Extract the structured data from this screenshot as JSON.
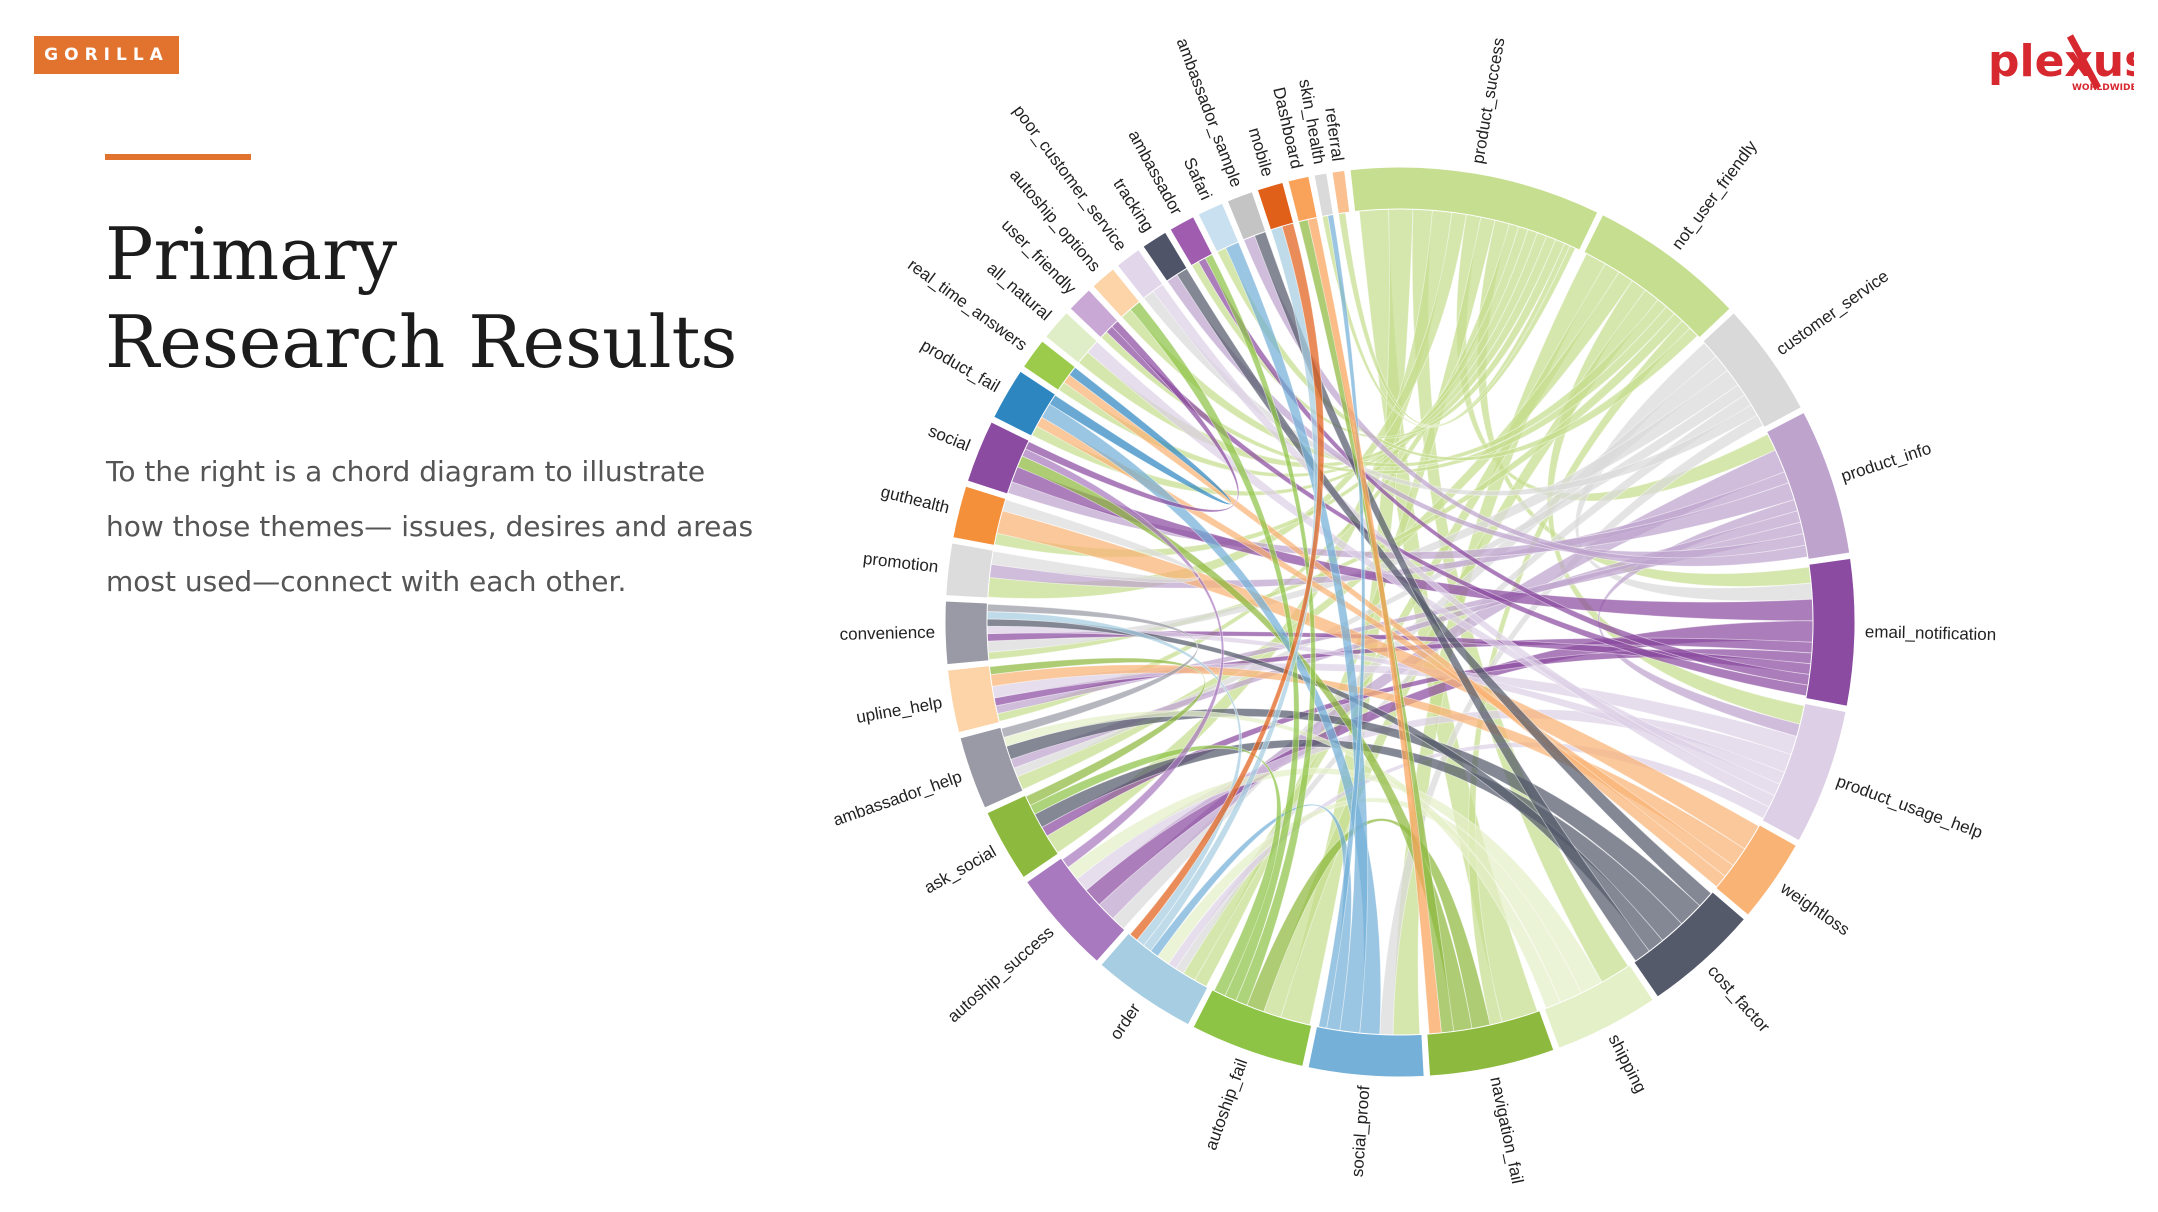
{
  "brand": {
    "badge": "GORILLA",
    "logo_text": "plexus",
    "logo_sub": "WORLDWIDE."
  },
  "heading": {
    "line1": "Primary",
    "line2": "Research Results"
  },
  "description": "To the right is a chord diagram to illustrate how those themes— issues, desires and areas most used—connect with each other.",
  "diagram": {
    "type": "chord",
    "groups": [
      {
        "name": "product_success",
        "weight": 24,
        "color": "#C6DE8F"
      },
      {
        "name": "not_user_friendly",
        "weight": 15,
        "color": "#C6DE8F"
      },
      {
        "name": "customer_service",
        "weight": 11,
        "color": "#D9D9D9"
      },
      {
        "name": "product_info",
        "weight": 14,
        "color": "#BEA3CD"
      },
      {
        "name": "email_notification",
        "weight": 14,
        "color": "#8A4BA0"
      },
      {
        "name": "product_usage_help",
        "weight": 13,
        "color": "#DDD0E6"
      },
      {
        "name": "weightloss",
        "weight": 8,
        "color": "#F9B374"
      },
      {
        "name": "cost_factor",
        "weight": 11,
        "color": "#555A6B"
      },
      {
        "name": "shipping",
        "weight": 10,
        "color": "#E4F0C8"
      },
      {
        "name": "navigation_fail",
        "weight": 12,
        "color": "#8EB93F"
      },
      {
        "name": "social_proof",
        "weight": 11,
        "color": "#75B0D8"
      },
      {
        "name": "autoship_fail",
        "weight": 11,
        "color": "#8EC446"
      },
      {
        "name": "order",
        "weight": 10,
        "color": "#A6CDE1"
      },
      {
        "name": "autoship_success",
        "weight": 10,
        "color": "#A879BE"
      },
      {
        "name": "ask_social",
        "weight": 7,
        "color": "#8EB93F"
      },
      {
        "name": "ambassador_help",
        "weight": 7,
        "color": "#9A9AA6"
      },
      {
        "name": "upline_help",
        "weight": 6,
        "color": "#FCD4A8"
      },
      {
        "name": "convenience",
        "weight": 6,
        "color": "#9A9AA6"
      },
      {
        "name": "promotion",
        "weight": 5,
        "color": "#DCDCDC"
      },
      {
        "name": "guthealth",
        "weight": 5,
        "color": "#F48F3A"
      },
      {
        "name": "social",
        "weight": 6,
        "color": "#8A4BA0"
      },
      {
        "name": "product_fail",
        "weight": 5,
        "color": "#2E86C1"
      },
      {
        "name": "real_time_answers",
        "weight": 3,
        "color": "#9CCB4B"
      },
      {
        "name": "all_natural",
        "weight": 3,
        "color": "#E0EEC7"
      },
      {
        "name": "user_friendly",
        "weight": 2.5,
        "color": "#C9A8D6"
      },
      {
        "name": "autoship_options",
        "weight": 2.5,
        "color": "#FCD4A8"
      },
      {
        "name": "poor_customer_service",
        "weight": 2.5,
        "color": "#E2D6EA"
      },
      {
        "name": "tracking",
        "weight": 2.5,
        "color": "#4F5468"
      },
      {
        "name": "ambassador",
        "weight": 2.5,
        "color": "#A05DB0"
      },
      {
        "name": "Safari",
        "weight": 2.5,
        "color": "#C9E0F0"
      },
      {
        "name": "ambassador_sample",
        "weight": 2.5,
        "color": "#C4C4C4"
      },
      {
        "name": "mobile",
        "weight": 2.5,
        "color": "#E0601A"
      },
      {
        "name": "Dashboard",
        "weight": 2,
        "color": "#F9A25A"
      },
      {
        "name": "skin_health",
        "weight": 1.2,
        "color": "#DADADA"
      },
      {
        "name": "referral",
        "weight": 1.2,
        "color": "#FAC08F"
      }
    ],
    "links": [
      [
        0,
        9,
        3
      ],
      [
        0,
        11,
        2.5
      ],
      [
        0,
        8,
        2
      ],
      [
        0,
        14,
        2
      ],
      [
        0,
        18,
        1.5
      ],
      [
        0,
        3,
        1.5
      ],
      [
        0,
        12,
        1.5
      ],
      [
        0,
        4,
        1.5
      ],
      [
        0,
        16,
        1
      ],
      [
        0,
        19,
        1
      ],
      [
        0,
        21,
        1
      ],
      [
        0,
        22,
        1
      ],
      [
        0,
        23,
        1
      ],
      [
        0,
        28,
        1
      ],
      [
        0,
        34,
        0.6
      ],
      [
        0,
        33,
        0.6
      ],
      [
        1,
        10,
        2
      ],
      [
        1,
        12,
        1.5
      ],
      [
        1,
        15,
        1.5
      ],
      [
        1,
        5,
        1.5
      ],
      [
        1,
        11,
        1.5
      ],
      [
        1,
        25,
        1
      ],
      [
        1,
        24,
        1
      ],
      [
        1,
        17,
        1
      ],
      [
        1,
        9,
        1
      ],
      [
        1,
        29,
        1
      ],
      [
        2,
        4,
        1.5
      ],
      [
        2,
        13,
        1.5
      ],
      [
        2,
        17,
        1.5
      ],
      [
        2,
        15,
        1
      ],
      [
        2,
        12,
        1
      ],
      [
        2,
        26,
        1
      ],
      [
        2,
        10,
        1
      ],
      [
        3,
        13,
        2
      ],
      [
        3,
        18,
        1
      ],
      [
        3,
        20,
        1.5
      ],
      [
        3,
        5,
        1
      ],
      [
        3,
        15,
        1
      ],
      [
        3,
        16,
        1
      ],
      [
        3,
        27,
        1
      ],
      [
        3,
        30,
        1
      ],
      [
        4,
        20,
        2
      ],
      [
        4,
        13,
        2
      ],
      [
        4,
        16,
        1
      ],
      [
        4,
        14,
        1
      ],
      [
        4,
        17,
        1
      ],
      [
        4,
        28,
        1
      ],
      [
        4,
        24,
        1
      ],
      [
        5,
        16,
        1.5
      ],
      [
        5,
        13,
        1.5
      ],
      [
        5,
        17,
        1
      ],
      [
        5,
        23,
        1
      ],
      [
        5,
        26,
        1
      ],
      [
        5,
        12,
        1
      ],
      [
        6,
        19,
        2
      ],
      [
        6,
        16,
        1.5
      ],
      [
        6,
        21,
        1
      ],
      [
        6,
        22,
        1
      ],
      [
        7,
        27,
        1
      ],
      [
        7,
        15,
        1.5
      ],
      [
        7,
        14,
        1.5
      ],
      [
        7,
        17,
        1
      ],
      [
        7,
        30,
        1
      ],
      [
        8,
        13,
        1.5
      ],
      [
        8,
        12,
        1.5
      ],
      [
        8,
        15,
        1
      ],
      [
        9,
        11,
        1.5
      ],
      [
        9,
        20,
        1.5
      ],
      [
        9,
        32,
        1
      ],
      [
        10,
        21,
        1.5
      ],
      [
        10,
        29,
        1.5
      ],
      [
        10,
        12,
        1
      ],
      [
        10,
        33,
        0.6
      ],
      [
        11,
        28,
        1
      ],
      [
        11,
        25,
        1
      ],
      [
        11,
        14,
        1
      ],
      [
        12,
        31,
        1
      ],
      [
        12,
        17,
        1
      ],
      [
        13,
        20,
        1
      ],
      [
        14,
        16,
        1
      ],
      [
        15,
        17,
        1
      ],
      [
        18,
        19,
        1
      ],
      [
        20,
        24,
        1
      ],
      [
        21,
        22,
        1
      ],
      [
        31,
        12,
        1
      ],
      [
        32,
        9,
        1
      ],
      [
        35,
        0,
        0
      ]
    ]
  }
}
